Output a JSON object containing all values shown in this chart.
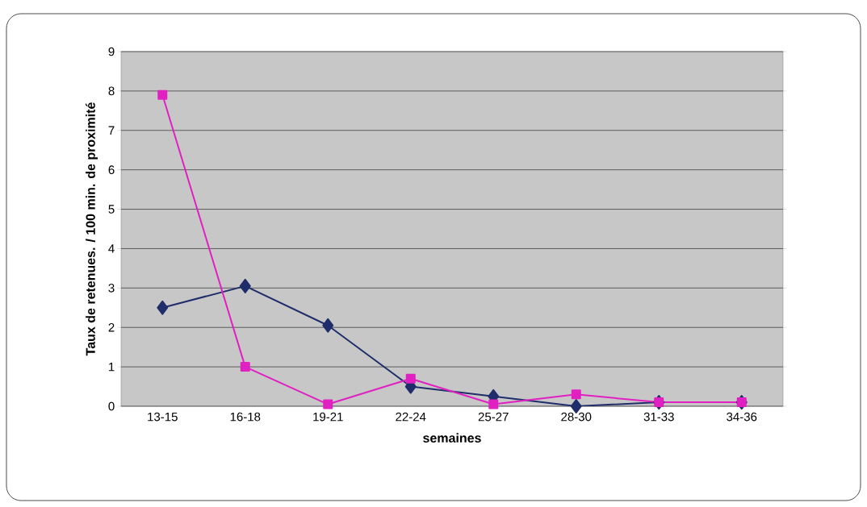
{
  "chart_data": {
    "type": "line",
    "xlabel": "semaines",
    "ylabel": "Taux de retenues. / 100 min. de proximité",
    "categories": [
      "13-15",
      "16-18",
      "19-21",
      "22-24",
      "25-27",
      "28-30",
      "31-33",
      "34-36"
    ],
    "series": [
      {
        "color": "#1f2d6b",
        "marker": "diamond",
        "values": [
          2.5,
          3.05,
          2.05,
          0.5,
          0.25,
          0,
          0.1,
          0.1
        ]
      },
      {
        "color": "#e020c0",
        "marker": "square",
        "values": [
          7.9,
          1,
          0.05,
          0.7,
          0.05,
          0.3,
          0.1,
          0.1
        ]
      }
    ],
    "ylim": [
      0,
      9
    ],
    "yticks": [
      0,
      1,
      2,
      3,
      4,
      5,
      6,
      7,
      8,
      9
    ],
    "grid": "y"
  }
}
